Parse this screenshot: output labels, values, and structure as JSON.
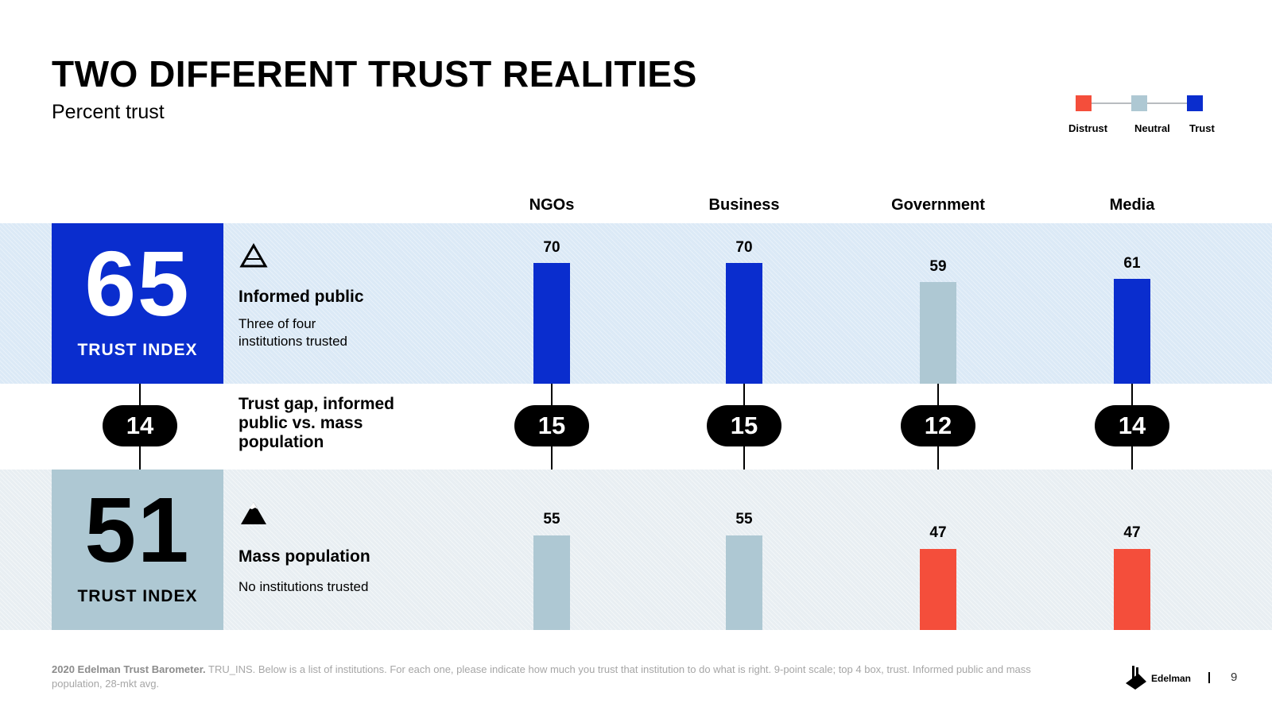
{
  "header": {
    "title": "TWO DIFFERENT TRUST REALITIES",
    "subtitle": "Percent trust"
  },
  "legend": {
    "items": [
      {
        "label": "Distrust",
        "color": "#f44e3b"
      },
      {
        "label": "Neutral",
        "color": "#aec8d3"
      },
      {
        "label": "Trust",
        "color": "#0a2dce"
      }
    ]
  },
  "informed": {
    "index_value": "65",
    "index_label": "TRUST INDEX",
    "title": "Informed public",
    "description": "Three of four institutions trusted"
  },
  "mass": {
    "index_value": "51",
    "index_label": "TRUST INDEX",
    "title": "Mass population",
    "description": "No institutions trusted"
  },
  "gap": {
    "label": "Trust gap, informed public vs. mass population",
    "index_gap": "14"
  },
  "chart_data": {
    "type": "bar",
    "title": "TWO DIFFERENT TRUST REALITIES",
    "subtitle": "Percent trust",
    "categories": [
      "NGOs",
      "Business",
      "Government",
      "Media"
    ],
    "series": [
      {
        "name": "Informed public",
        "values": [
          70,
          70,
          59,
          61
        ],
        "status": [
          "Trust",
          "Trust",
          "Neutral",
          "Trust"
        ]
      },
      {
        "name": "Mass population",
        "values": [
          55,
          55,
          47,
          47
        ],
        "status": [
          "Neutral",
          "Neutral",
          "Distrust",
          "Distrust"
        ]
      }
    ],
    "trust_gap": [
      15,
      15,
      12,
      14
    ],
    "legend": [
      "Distrust",
      "Neutral",
      "Trust"
    ],
    "ylim": [
      0,
      100
    ]
  },
  "footer": {
    "source_bold": "2020 Edelman Trust Barometer.",
    "source_text": " TRU_INS. Below is a list of institutions. For each one, please indicate how much you trust that institution to do what is right. 9-point scale; top 4 box, trust. Informed public and mass population, 28-mkt avg.",
    "logo_text": "Edelman",
    "page_number": "9"
  }
}
